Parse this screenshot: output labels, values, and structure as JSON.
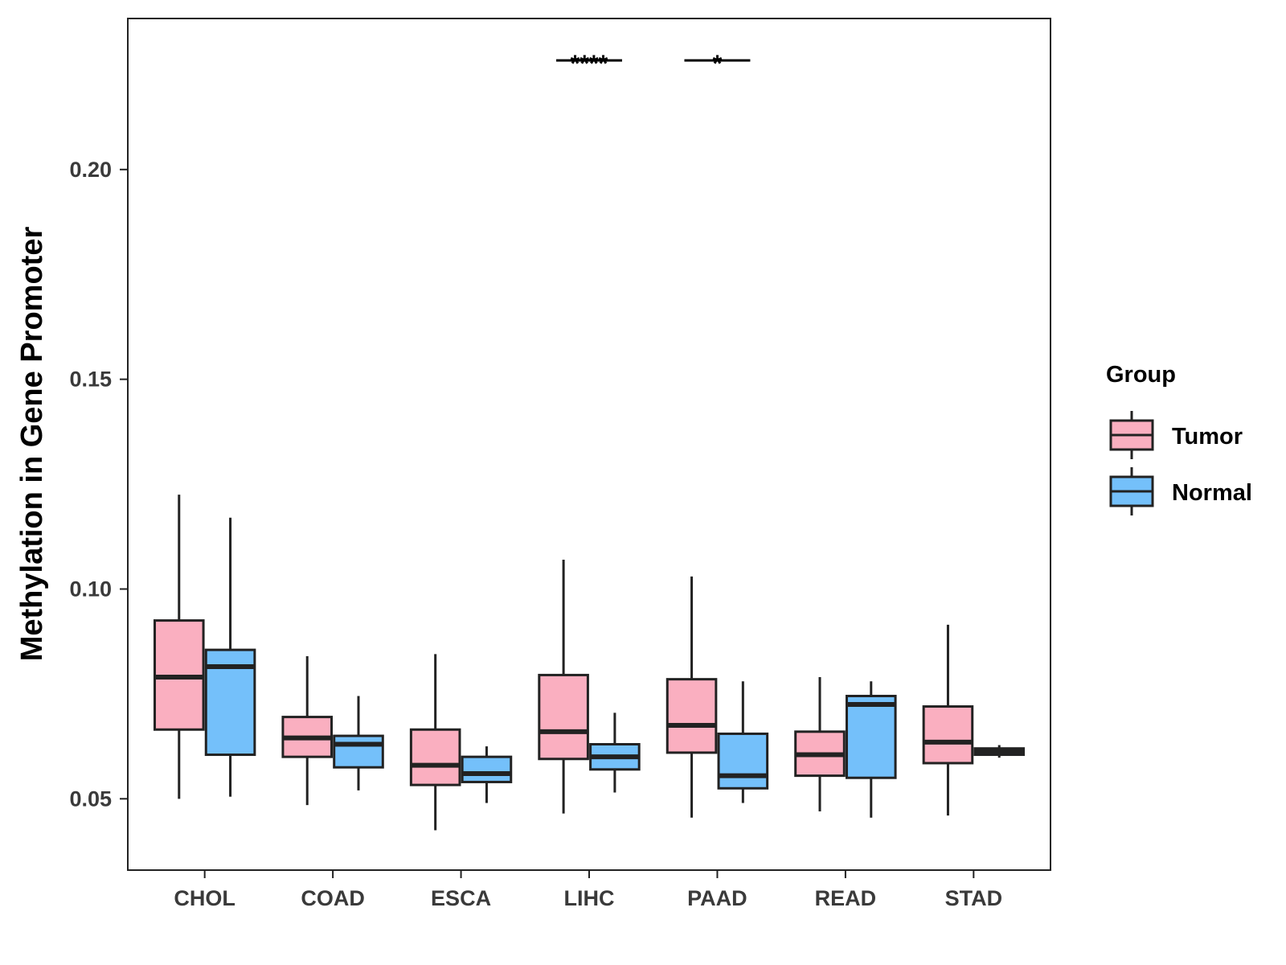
{
  "chart_data": {
    "type": "boxplot",
    "title": "",
    "xlabel": "",
    "ylabel": "Methylation in Gene Promoter",
    "ylim": [
      0.033,
      0.236
    ],
    "yticks": [
      0.05,
      0.1,
      0.15,
      0.2
    ],
    "ytick_labels": [
      "0.05",
      "0.10",
      "0.15",
      "0.20"
    ],
    "categories": [
      "CHOL",
      "COAD",
      "ESCA",
      "LIHC",
      "PAAD",
      "READ",
      "STAD"
    ],
    "legend": {
      "title": "Group",
      "position": "right",
      "entries": [
        {
          "name": "Tumor",
          "color": "#FAAFC0"
        },
        {
          "name": "Normal",
          "color": "#74C0FA"
        }
      ]
    },
    "series": [
      {
        "name": "Tumor",
        "color": "#FAAFC0",
        "boxes": [
          {
            "category": "CHOL",
            "min": 0.05,
            "q1": 0.0665,
            "median": 0.079,
            "q3": 0.0925,
            "max": 0.1225
          },
          {
            "category": "COAD",
            "min": 0.0485,
            "q1": 0.06,
            "median": 0.0645,
            "q3": 0.0695,
            "max": 0.084
          },
          {
            "category": "ESCA",
            "min": 0.0425,
            "q1": 0.0533,
            "median": 0.058,
            "q3": 0.0665,
            "max": 0.0845
          },
          {
            "category": "LIHC",
            "min": 0.0465,
            "q1": 0.0595,
            "median": 0.066,
            "q3": 0.0795,
            "max": 0.107
          },
          {
            "category": "PAAD",
            "min": 0.0455,
            "q1": 0.061,
            "median": 0.0675,
            "q3": 0.0785,
            "max": 0.103
          },
          {
            "category": "READ",
            "min": 0.047,
            "q1": 0.0555,
            "median": 0.0605,
            "q3": 0.066,
            "max": 0.079
          },
          {
            "category": "STAD",
            "min": 0.046,
            "q1": 0.0585,
            "median": 0.0635,
            "q3": 0.072,
            "max": 0.0915
          }
        ]
      },
      {
        "name": "Normal",
        "color": "#74C0FA",
        "boxes": [
          {
            "category": "CHOL",
            "min": 0.0505,
            "q1": 0.0605,
            "median": 0.0815,
            "q3": 0.0855,
            "max": 0.117
          },
          {
            "category": "COAD",
            "min": 0.052,
            "q1": 0.0575,
            "median": 0.063,
            "q3": 0.065,
            "max": 0.0745
          },
          {
            "category": "ESCA",
            "min": 0.049,
            "q1": 0.054,
            "median": 0.056,
            "q3": 0.06,
            "max": 0.0625
          },
          {
            "category": "LIHC",
            "min": 0.0515,
            "q1": 0.057,
            "median": 0.06,
            "q3": 0.063,
            "max": 0.0705
          },
          {
            "category": "PAAD",
            "min": 0.049,
            "q1": 0.0525,
            "median": 0.0555,
            "q3": 0.0655,
            "max": 0.078
          },
          {
            "category": "READ",
            "min": 0.0455,
            "q1": 0.055,
            "median": 0.0725,
            "q3": 0.0745,
            "max": 0.078
          },
          {
            "category": "STAD",
            "min": 0.0598,
            "q1": 0.0605,
            "median": 0.0613,
            "q3": 0.062,
            "max": 0.0628
          }
        ]
      }
    ],
    "annotations": [
      {
        "category": "LIHC",
        "label": "****",
        "y": 0.226
      },
      {
        "category": "PAAD",
        "label": "*",
        "y": 0.226
      }
    ]
  }
}
